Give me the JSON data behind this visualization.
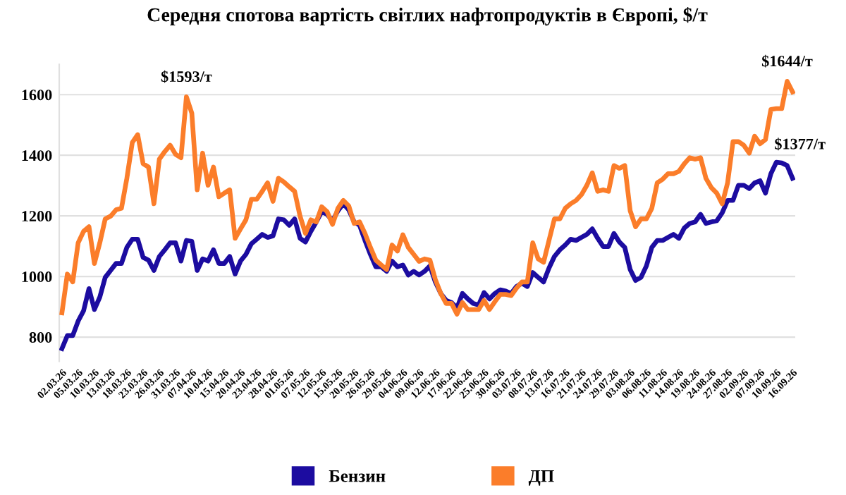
{
  "chart_data": {
    "type": "line",
    "title": "Середня спотова вартість світлих нафтопродуктів в Європі, $/т",
    "categories": [
      "02.03.26",
      null,
      null,
      "05.03.26",
      null,
      null,
      "10.03.26",
      null,
      null,
      "13.03.26",
      null,
      null,
      "18.03.26",
      null,
      null,
      "23.03.26",
      null,
      null,
      "26.03.26",
      null,
      null,
      "31.03.26",
      null,
      null,
      "07.04.26",
      null,
      null,
      "10.04.26",
      null,
      null,
      "15.04.26",
      null,
      null,
      "20.04.26",
      null,
      null,
      "23.04.26",
      null,
      null,
      "28.04.26",
      null,
      null,
      "01.05.26",
      null,
      null,
      "07.05.26",
      null,
      null,
      "12.05.26",
      null,
      null,
      "15.05.26",
      null,
      null,
      "20.05.26",
      null,
      null,
      "26.05.26",
      null,
      null,
      "29.05.26",
      null,
      null,
      "04.06.26",
      null,
      null,
      "09.06.26",
      null,
      null,
      "12.06.26",
      null,
      null,
      "17.06.26",
      null,
      null,
      "22.06.26",
      null,
      null,
      "25.06.26",
      null,
      null,
      "30.06.26",
      null,
      null,
      "03.07.26",
      null,
      null,
      "08.07.26",
      null,
      null,
      "13.07.26",
      null,
      null,
      "16.07.26",
      null,
      null,
      "21.07.26",
      null,
      null,
      "24.07.26",
      null,
      null,
      "29.07.26",
      null,
      null,
      "03.08.26",
      null,
      null,
      "06.08.26",
      null,
      null,
      "11.08.26",
      null,
      null,
      "14.08.26",
      null,
      null,
      "19.08.26",
      null,
      null,
      "24.08.26",
      null,
      null,
      "27.08.26",
      null,
      null,
      "02.09.26",
      null,
      null,
      "07.09.26",
      null,
      null,
      "10.09.26",
      null,
      null,
      "16.09.26"
    ],
    "series": [
      {
        "name": "Бензин",
        "color": "#1c0ca0",
        "values": [
          762,
          805,
          805,
          853,
          887,
          960,
          891,
          932,
          997,
          1020,
          1043,
          1043,
          1096,
          1123,
          1123,
          1063,
          1054,
          1020,
          1066,
          1088,
          1111,
          1111,
          1051,
          1119,
          1116,
          1020,
          1058,
          1051,
          1088,
          1043,
          1043,
          1066,
          1008,
          1051,
          1073,
          1108,
          1123,
          1139,
          1129,
          1134,
          1190,
          1187,
          1169,
          1190,
          1126,
          1114,
          1149,
          1180,
          1214,
          1205,
          1184,
          1217,
          1240,
          1220,
          1180,
          1169,
          1119,
          1073,
          1032,
          1032,
          1017,
          1051,
          1032,
          1038,
          1005,
          1017,
          1005,
          1017,
          1035,
          982,
          944,
          921,
          914,
          896,
          944,
          926,
          911,
          906,
          947,
          926,
          944,
          956,
          952,
          944,
          967,
          978,
          967,
          1013,
          997,
          982,
          1028,
          1066,
          1088,
          1104,
          1123,
          1119,
          1129,
          1139,
          1157,
          1126,
          1099,
          1099,
          1142,
          1114,
          1096,
          1023,
          987,
          997,
          1035,
          1096,
          1119,
          1119,
          1129,
          1139,
          1126,
          1160,
          1175,
          1180,
          1205,
          1175,
          1180,
          1184,
          1210,
          1251,
          1251,
          1301,
          1301,
          1290,
          1309,
          1316,
          1275,
          1339,
          1377,
          1375,
          1366,
          1324
        ],
        "value_labels": [
          null,
          null,
          null,
          null,
          null,
          null,
          null,
          null,
          null,
          null,
          null,
          null,
          null,
          null,
          null,
          null,
          null,
          null,
          null,
          null,
          null,
          null,
          null,
          null,
          null,
          null,
          null,
          null,
          null,
          null,
          null,
          null,
          null,
          null,
          null,
          null,
          null,
          null,
          null,
          null,
          null,
          null,
          null,
          null,
          null,
          null,
          null,
          null,
          null,
          null,
          null,
          null,
          null,
          null,
          null,
          null,
          null,
          null,
          null,
          null,
          null,
          null,
          null,
          null,
          null,
          null,
          null,
          null,
          null,
          null,
          null,
          null,
          null,
          null,
          null,
          null,
          null,
          null,
          null,
          null,
          null,
          null,
          null,
          null,
          null,
          null,
          null,
          null,
          null,
          null,
          null,
          null,
          null,
          null,
          null,
          null,
          null,
          null,
          null,
          null,
          null,
          null,
          null,
          null,
          null,
          null,
          null,
          null,
          null,
          null,
          null,
          null,
          null,
          null,
          null,
          null,
          null,
          null,
          null,
          null,
          null,
          null,
          null,
          null,
          null,
          null,
          null,
          null,
          null,
          null,
          null,
          null,
          "$1377/т",
          null,
          null,
          null
        ]
      },
      {
        "name": "ДП",
        "color": "#fb7d2a",
        "values": [
          880,
          1008,
          982,
          1111,
          1149,
          1164,
          1043,
          1111,
          1190,
          1199,
          1220,
          1225,
          1324,
          1442,
          1468,
          1372,
          1361,
          1240,
          1387,
          1412,
          1433,
          1403,
          1392,
          1593,
          1539,
          1286,
          1407,
          1301,
          1361,
          1263,
          1275,
          1286,
          1126,
          1157,
          1187,
          1255,
          1255,
          1281,
          1309,
          1248,
          1324,
          1312,
          1296,
          1281,
          1199,
          1142,
          1187,
          1180,
          1230,
          1214,
          1172,
          1225,
          1251,
          1233,
          1175,
          1180,
          1142,
          1096,
          1054,
          1038,
          1023,
          1104,
          1084,
          1138,
          1096,
          1073,
          1050,
          1058,
          1054,
          990,
          944,
          911,
          911,
          876,
          914,
          891,
          891,
          891,
          921,
          891,
          917,
          941,
          941,
          937,
          962,
          982,
          982,
          1111,
          1058,
          1047,
          1119,
          1190,
          1190,
          1225,
          1240,
          1251,
          1270,
          1301,
          1342,
          1281,
          1286,
          1281,
          1366,
          1357,
          1366,
          1217,
          1164,
          1190,
          1190,
          1225,
          1309,
          1321,
          1339,
          1339,
          1347,
          1372,
          1392,
          1387,
          1392,
          1324,
          1293,
          1275,
          1240,
          1309,
          1445,
          1445,
          1433,
          1407,
          1463,
          1438,
          1452,
          1551,
          1554,
          1554,
          1644,
          1609
        ],
        "value_labels": [
          null,
          null,
          null,
          null,
          null,
          null,
          null,
          null,
          null,
          null,
          null,
          null,
          null,
          null,
          null,
          null,
          null,
          null,
          null,
          null,
          null,
          null,
          null,
          "$1593/т",
          null,
          null,
          null,
          null,
          null,
          null,
          null,
          null,
          null,
          null,
          null,
          null,
          null,
          null,
          null,
          null,
          null,
          null,
          null,
          null,
          null,
          null,
          null,
          null,
          null,
          null,
          null,
          null,
          null,
          null,
          null,
          null,
          null,
          null,
          null,
          null,
          null,
          null,
          null,
          null,
          null,
          null,
          null,
          null,
          null,
          null,
          null,
          null,
          null,
          null,
          null,
          null,
          null,
          null,
          null,
          null,
          null,
          null,
          null,
          null,
          null,
          null,
          null,
          null,
          null,
          null,
          null,
          null,
          null,
          null,
          null,
          null,
          null,
          null,
          null,
          null,
          null,
          null,
          null,
          null,
          null,
          null,
          null,
          null,
          null,
          null,
          null,
          null,
          null,
          null,
          null,
          null,
          null,
          null,
          null,
          null,
          null,
          null,
          null,
          null,
          null,
          null,
          null,
          null,
          null,
          null,
          null,
          null,
          null,
          null,
          "$1644/т",
          null
        ]
      }
    ],
    "ylim": [
      720,
      1700
    ],
    "yticks": [
      800,
      1000,
      1200,
      1400,
      1600
    ],
    "grid": "y",
    "legend": "bottom",
    "line_style": "solid",
    "marker": "none"
  }
}
